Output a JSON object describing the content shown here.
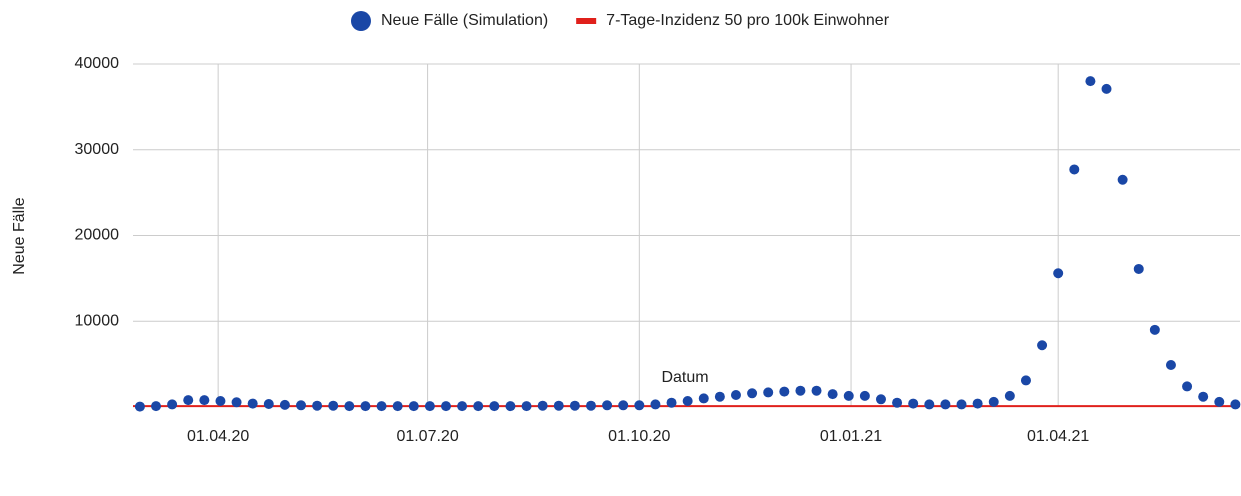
{
  "chart_data": {
    "type": "scatter",
    "x_label": "Datum",
    "y_label": "Neue Fälle",
    "xlim": [
      "24.02.20",
      "19.06.21"
    ],
    "xticks": [
      "01.04.20",
      "01.07.20",
      "01.10.20",
      "01.01.21",
      "01.04.21"
    ],
    "ylim": [
      0,
      40000
    ],
    "yticks": [
      10000,
      20000,
      30000,
      40000
    ],
    "grid": true,
    "legend": "top",
    "series": [
      {
        "name": "Neue Fälle (Simulation)",
        "type": "scatter",
        "color": "#1a47a6",
        "x": [
          "27.02.20",
          "05.03.20",
          "12.03.20",
          "19.03.20",
          "26.03.20",
          "02.04.20",
          "09.04.20",
          "16.04.20",
          "23.04.20",
          "30.04.20",
          "07.05.20",
          "14.05.20",
          "21.05.20",
          "28.05.20",
          "04.06.20",
          "11.06.20",
          "18.06.20",
          "25.06.20",
          "02.07.20",
          "09.07.20",
          "16.07.20",
          "23.07.20",
          "30.07.20",
          "06.08.20",
          "13.08.20",
          "20.08.20",
          "27.08.20",
          "03.09.20",
          "10.09.20",
          "17.09.20",
          "24.09.20",
          "01.10.20",
          "08.10.20",
          "15.10.20",
          "22.10.20",
          "29.10.20",
          "05.11.20",
          "12.11.20",
          "19.11.20",
          "26.11.20",
          "03.12.20",
          "10.12.20",
          "17.12.20",
          "24.12.20",
          "31.12.20",
          "07.01.21",
          "14.01.21",
          "21.01.21",
          "28.01.21",
          "04.02.21",
          "11.02.21",
          "18.02.21",
          "25.02.21",
          "04.03.21",
          "11.03.21",
          "18.03.21",
          "25.03.21",
          "01.04.21",
          "08.04.21",
          "15.04.21",
          "22.04.21",
          "29.04.21",
          "06.05.21",
          "13.05.21",
          "20.05.21",
          "27.05.21",
          "03.06.21",
          "10.06.21",
          "17.06.21"
        ],
        "values": [
          50,
          100,
          300,
          800,
          800,
          700,
          550,
          400,
          350,
          250,
          200,
          150,
          150,
          100,
          100,
          100,
          100,
          100,
          100,
          100,
          100,
          100,
          100,
          100,
          100,
          150,
          150,
          150,
          150,
          200,
          200,
          200,
          300,
          500,
          700,
          1000,
          1200,
          1400,
          1600,
          1700,
          1800,
          1900,
          1900,
          1500,
          1300,
          1300,
          900,
          500,
          400,
          300,
          300,
          300,
          400,
          600,
          1300,
          3100,
          7200,
          15600,
          27700,
          38000,
          37100,
          26500,
          16100,
          9000,
          4900,
          2400,
          1200,
          600,
          300
        ]
      },
      {
        "name": "7-Tage-Inzidenz 50 pro 100k Einwohner",
        "type": "line",
        "color": "#e0201b",
        "x": [
          "24.02.20",
          "19.06.21"
        ],
        "values": [
          100,
          100
        ]
      }
    ]
  }
}
